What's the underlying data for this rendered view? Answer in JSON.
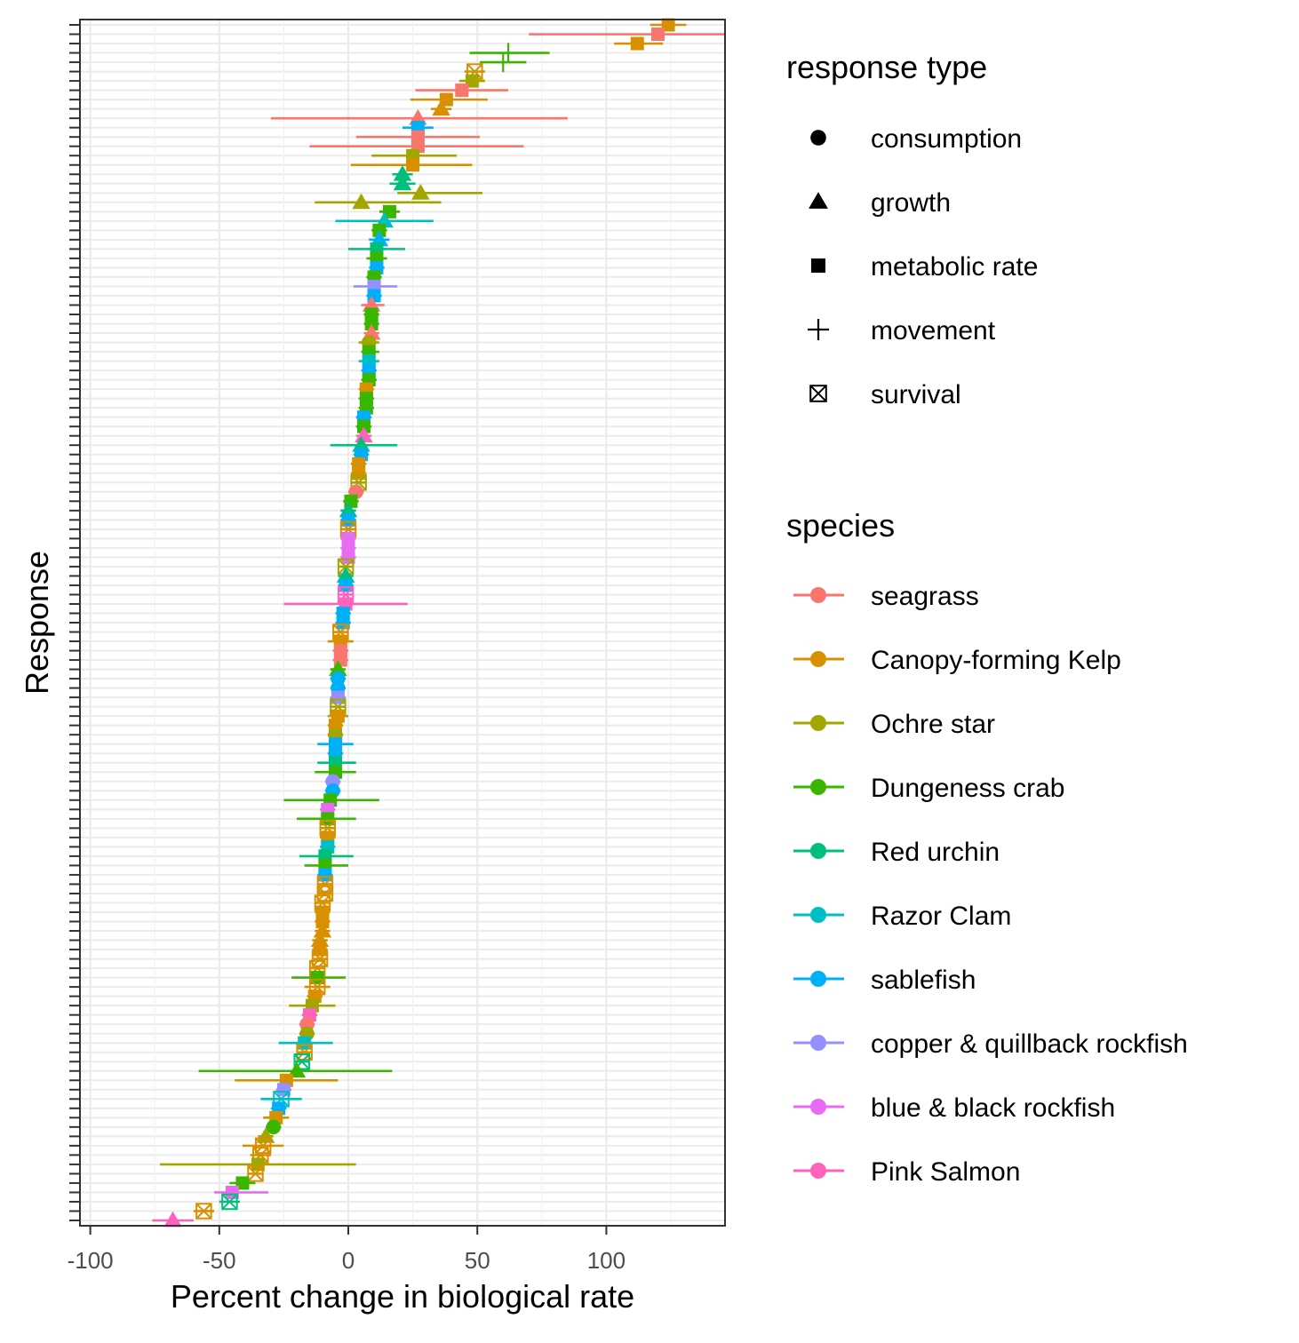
{
  "chart_data": {
    "type": "scatter",
    "xlabel": "Percent change in biological rate",
    "ylabel": "Response",
    "xlim": [
      -104,
      146
    ],
    "x_ticks": [
      -100,
      -50,
      0,
      50,
      100
    ],
    "grid": true,
    "legend_position": "right",
    "shape_legend": {
      "title": "response type",
      "entries": [
        {
          "label": "consumption",
          "shape": "circle"
        },
        {
          "label": "growth",
          "shape": "triangle"
        },
        {
          "label": "metabolic rate",
          "shape": "square"
        },
        {
          "label": "movement",
          "shape": "plus"
        },
        {
          "label": "survival",
          "shape": "boxcross"
        }
      ]
    },
    "color_legend": {
      "title": "species",
      "entries": [
        {
          "label": "seagrass",
          "color": "#F8766D"
        },
        {
          "label": "Canopy-forming Kelp",
          "color": "#D89000"
        },
        {
          "label": "Ochre star",
          "color": "#A3A500"
        },
        {
          "label": "Dungeness crab",
          "color": "#39B600"
        },
        {
          "label": "Red urchin",
          "color": "#00BF7D"
        },
        {
          "label": "Razor Clam",
          "color": "#00BFC4"
        },
        {
          "label": "sablefish",
          "color": "#00B0F6"
        },
        {
          "label": "copper & quillback rockfish",
          "color": "#9590FF"
        },
        {
          "label": "blue & black rockfish",
          "color": "#E76BF3"
        },
        {
          "label": "Pink Salmon",
          "color": "#FF62BC"
        }
      ]
    },
    "points": [
      {
        "x": 124,
        "lo": 117,
        "hi": 131,
        "sp": 1,
        "sh": "square"
      },
      {
        "x": 120,
        "lo": 70,
        "hi": 146,
        "sp": 0,
        "sh": "square"
      },
      {
        "x": 112,
        "lo": 103,
        "hi": 122,
        "sp": 1,
        "sh": "square"
      },
      {
        "x": 62,
        "lo": 47,
        "hi": 78,
        "sp": 3,
        "sh": "plus"
      },
      {
        "x": 60,
        "lo": 51,
        "hi": 69,
        "sp": 3,
        "sh": "plus"
      },
      {
        "x": 49,
        "lo": 45,
        "hi": 53,
        "sp": 1,
        "sh": "boxcross"
      },
      {
        "x": 48,
        "lo": 43,
        "hi": 53,
        "sp": 2,
        "sh": "square"
      },
      {
        "x": 44,
        "lo": 26,
        "hi": 62,
        "sp": 0,
        "sh": "square"
      },
      {
        "x": 38,
        "lo": 24,
        "hi": 54,
        "sp": 1,
        "sh": "square"
      },
      {
        "x": 36,
        "lo": 32,
        "hi": 40,
        "sp": 1,
        "sh": "triangle"
      },
      {
        "x": 27,
        "lo": -30,
        "hi": 85,
        "sp": 0,
        "sh": "triangle"
      },
      {
        "x": 27,
        "lo": 21,
        "hi": 33,
        "sp": 6,
        "sh": "square"
      },
      {
        "x": 27,
        "lo": 3,
        "hi": 51,
        "sp": 0,
        "sh": "square"
      },
      {
        "x": 27,
        "lo": -15,
        "hi": 68,
        "sp": 0,
        "sh": "square"
      },
      {
        "x": 25,
        "lo": 9,
        "hi": 42,
        "sp": 2,
        "sh": "square"
      },
      {
        "x": 25,
        "lo": 1,
        "hi": 48,
        "sp": 1,
        "sh": "square"
      },
      {
        "x": 21,
        "lo": 17,
        "hi": 25,
        "sp": 4,
        "sh": "triangle"
      },
      {
        "x": 21,
        "lo": 16,
        "hi": 26,
        "sp": 4,
        "sh": "triangle"
      },
      {
        "x": 28,
        "lo": 19,
        "hi": 52,
        "sp": 2,
        "sh": "triangle"
      },
      {
        "x": 5,
        "lo": -13,
        "hi": 36,
        "sp": 2,
        "sh": "triangle"
      },
      {
        "x": 16,
        "lo": 12,
        "hi": 20,
        "sp": 3,
        "sh": "square"
      },
      {
        "x": 14,
        "lo": -5,
        "hi": 33,
        "sp": 5,
        "sh": "triangle"
      },
      {
        "x": 12,
        "lo": 9,
        "hi": 15,
        "sp": 3,
        "sh": "square"
      },
      {
        "x": 12,
        "lo": 8,
        "hi": 16,
        "sp": 6,
        "sh": "triangle"
      },
      {
        "x": 11,
        "lo": 0,
        "hi": 22,
        "sp": 4,
        "sh": "square"
      },
      {
        "x": 11,
        "lo": 7,
        "hi": 15,
        "sp": 3,
        "sh": "square"
      },
      {
        "x": 11,
        "lo": 8,
        "hi": 14,
        "sp": 6,
        "sh": "square"
      },
      {
        "x": 10,
        "lo": 7,
        "hi": 13,
        "sp": 3,
        "sh": "square"
      },
      {
        "x": 10,
        "lo": 2,
        "hi": 19,
        "sp": 7,
        "sh": "square"
      },
      {
        "x": 10,
        "lo": 7,
        "hi": 13,
        "sp": 6,
        "sh": "square"
      },
      {
        "x": 9,
        "lo": 5,
        "hi": 14,
        "sp": 0,
        "sh": "triangle"
      },
      {
        "x": 9,
        "lo": 6,
        "hi": 12,
        "sp": 3,
        "sh": "square"
      },
      {
        "x": 9,
        "lo": 6,
        "hi": 12,
        "sp": 3,
        "sh": "square"
      },
      {
        "x": 9,
        "lo": 6,
        "hi": 12,
        "sp": 0,
        "sh": "triangle"
      },
      {
        "x": 8,
        "lo": 4,
        "hi": 12,
        "sp": 2,
        "sh": "circle"
      },
      {
        "x": 8,
        "lo": 5,
        "hi": 12,
        "sp": 3,
        "sh": "square"
      },
      {
        "x": 8,
        "lo": 4,
        "hi": 12,
        "sp": 5,
        "sh": "square"
      },
      {
        "x": 8,
        "lo": 5,
        "hi": 11,
        "sp": 6,
        "sh": "square"
      },
      {
        "x": 8,
        "lo": 5,
        "hi": 11,
        "sp": 3,
        "sh": "square"
      },
      {
        "x": 7,
        "lo": 4,
        "hi": 10,
        "sp": 1,
        "sh": "square"
      },
      {
        "x": 7,
        "lo": 4,
        "hi": 10,
        "sp": 3,
        "sh": "square"
      },
      {
        "x": 7,
        "lo": 4,
        "hi": 10,
        "sp": 3,
        "sh": "square"
      },
      {
        "x": 6,
        "lo": 3,
        "hi": 9,
        "sp": 6,
        "sh": "square"
      },
      {
        "x": 6,
        "lo": 3,
        "hi": 9,
        "sp": 3,
        "sh": "square"
      },
      {
        "x": 6,
        "lo": 3,
        "hi": 9,
        "sp": 9,
        "sh": "triangle"
      },
      {
        "x": 5,
        "lo": -7,
        "hi": 19,
        "sp": 4,
        "sh": "triangle"
      },
      {
        "x": 5,
        "lo": 2,
        "hi": 8,
        "sp": 6,
        "sh": "square"
      },
      {
        "x": 4,
        "lo": 1,
        "hi": 7,
        "sp": 1,
        "sh": "square"
      },
      {
        "x": 4,
        "lo": 1,
        "hi": 7,
        "sp": 1,
        "sh": "square"
      },
      {
        "x": 4,
        "lo": 1,
        "hi": 7,
        "sp": 2,
        "sh": "boxcross"
      },
      {
        "x": 3,
        "lo": 0,
        "hi": 6,
        "sp": 0,
        "sh": "circle"
      },
      {
        "x": 1,
        "lo": -2,
        "hi": 4,
        "sp": 3,
        "sh": "square"
      },
      {
        "x": 0,
        "lo": -3,
        "hi": 3,
        "sp": 4,
        "sh": "triangle"
      },
      {
        "x": 0,
        "lo": -3,
        "hi": 3,
        "sp": 6,
        "sh": "square"
      },
      {
        "x": 0,
        "lo": -3,
        "hi": 3,
        "sp": 1,
        "sh": "boxcross"
      },
      {
        "x": 0,
        "lo": -3,
        "hi": 3,
        "sp": 8,
        "sh": "square"
      },
      {
        "x": 0,
        "lo": -3,
        "hi": 3,
        "sp": 8,
        "sh": "square"
      },
      {
        "x": 0,
        "lo": -3,
        "hi": 3,
        "sp": 8,
        "sh": "square"
      },
      {
        "x": -1,
        "lo": -4,
        "hi": 2,
        "sp": 2,
        "sh": "boxcross"
      },
      {
        "x": -1,
        "lo": -4,
        "hi": 2,
        "sp": 4,
        "sh": "triangle"
      },
      {
        "x": -1,
        "lo": -4,
        "hi": 2,
        "sp": 6,
        "sh": "square"
      },
      {
        "x": -1,
        "lo": -4,
        "hi": 2,
        "sp": 9,
        "sh": "boxcross"
      },
      {
        "x": -1,
        "lo": -25,
        "hi": 23,
        "sp": 9,
        "sh": "square"
      },
      {
        "x": -2,
        "lo": -5,
        "hi": 1,
        "sp": 6,
        "sh": "square"
      },
      {
        "x": -2,
        "lo": -5,
        "hi": 1,
        "sp": 6,
        "sh": "square"
      },
      {
        "x": -3,
        "lo": -6,
        "hi": 0,
        "sp": 1,
        "sh": "boxcross"
      },
      {
        "x": -3,
        "lo": -8,
        "hi": 2,
        "sp": 1,
        "sh": "square"
      },
      {
        "x": -3,
        "lo": -6,
        "hi": 0,
        "sp": 0,
        "sh": "square"
      },
      {
        "x": -3,
        "lo": -6,
        "hi": 0,
        "sp": 0,
        "sh": "square"
      },
      {
        "x": -4,
        "lo": -7,
        "hi": -1,
        "sp": 3,
        "sh": "triangle"
      },
      {
        "x": -4,
        "lo": -7,
        "hi": -1,
        "sp": 6,
        "sh": "circle"
      },
      {
        "x": -4,
        "lo": -7,
        "hi": -1,
        "sp": 6,
        "sh": "circle"
      },
      {
        "x": -4,
        "lo": -7,
        "hi": -1,
        "sp": 7,
        "sh": "square"
      },
      {
        "x": -4,
        "lo": -7,
        "hi": -1,
        "sp": 2,
        "sh": "boxcross"
      },
      {
        "x": -4,
        "lo": -8,
        "hi": 0,
        "sp": 1,
        "sh": "square"
      },
      {
        "x": -5,
        "lo": -8,
        "hi": -2,
        "sp": 1,
        "sh": "square"
      },
      {
        "x": -5,
        "lo": -8,
        "hi": -2,
        "sp": 2,
        "sh": "circle"
      },
      {
        "x": -5,
        "lo": -12,
        "hi": 2,
        "sp": 6,
        "sh": "square"
      },
      {
        "x": -5,
        "lo": -8,
        "hi": -2,
        "sp": 6,
        "sh": "square"
      },
      {
        "x": -5,
        "lo": -12,
        "hi": 3,
        "sp": 4,
        "sh": "square"
      },
      {
        "x": -5,
        "lo": -13,
        "hi": 3,
        "sp": 3,
        "sh": "square"
      },
      {
        "x": -6,
        "lo": -9,
        "hi": -3,
        "sp": 7,
        "sh": "circle"
      },
      {
        "x": -6,
        "lo": -9,
        "hi": -3,
        "sp": 6,
        "sh": "circle"
      },
      {
        "x": -7,
        "lo": -25,
        "hi": 12,
        "sp": 3,
        "sh": "square"
      },
      {
        "x": -8,
        "lo": -11,
        "hi": -5,
        "sp": 8,
        "sh": "square"
      },
      {
        "x": -8,
        "lo": -20,
        "hi": 3,
        "sp": 3,
        "sh": "square"
      },
      {
        "x": -8,
        "lo": -11,
        "hi": -5,
        "sp": 1,
        "sh": "boxcross"
      },
      {
        "x": -8,
        "lo": -11,
        "hi": -5,
        "sp": 1,
        "sh": "square"
      },
      {
        "x": -8,
        "lo": -11,
        "hi": -5,
        "sp": 5,
        "sh": "square"
      },
      {
        "x": -9,
        "lo": -19,
        "hi": 2,
        "sp": 4,
        "sh": "square"
      },
      {
        "x": -9,
        "lo": -17,
        "hi": 0,
        "sp": 3,
        "sh": "square"
      },
      {
        "x": -9,
        "lo": -12,
        "hi": -6,
        "sp": 6,
        "sh": "square"
      },
      {
        "x": -9,
        "lo": -12,
        "hi": -6,
        "sp": 1,
        "sh": "boxcross"
      },
      {
        "x": -9,
        "lo": -12,
        "hi": -6,
        "sp": 1,
        "sh": "boxcross"
      },
      {
        "x": -10,
        "lo": -13,
        "hi": -7,
        "sp": 1,
        "sh": "boxcross"
      },
      {
        "x": -10,
        "lo": -13,
        "hi": -7,
        "sp": 1,
        "sh": "square"
      },
      {
        "x": -10,
        "lo": -13,
        "hi": -7,
        "sp": 1,
        "sh": "square"
      },
      {
        "x": -10,
        "lo": -13,
        "hi": -7,
        "sp": 1,
        "sh": "triangle"
      },
      {
        "x": -11,
        "lo": -14,
        "hi": -8,
        "sp": 1,
        "sh": "triangle"
      },
      {
        "x": -11,
        "lo": -14,
        "hi": -8,
        "sp": 1,
        "sh": "square"
      },
      {
        "x": -11,
        "lo": -14,
        "hi": -8,
        "sp": 1,
        "sh": "boxcross"
      },
      {
        "x": -12,
        "lo": -15,
        "hi": -9,
        "sp": 1,
        "sh": "boxcross"
      },
      {
        "x": -12,
        "lo": -22,
        "hi": -1,
        "sp": 3,
        "sh": "square"
      },
      {
        "x": -12,
        "lo": -17,
        "hi": -7,
        "sp": 1,
        "sh": "boxcross"
      },
      {
        "x": -13,
        "lo": -16,
        "hi": -10,
        "sp": 1,
        "sh": "square"
      },
      {
        "x": -14,
        "lo": -23,
        "hi": -5,
        "sp": 2,
        "sh": "square"
      },
      {
        "x": -15,
        "lo": -18,
        "hi": -12,
        "sp": 9,
        "sh": "square"
      },
      {
        "x": -16,
        "lo": -19,
        "hi": -13,
        "sp": 0,
        "sh": "circle"
      },
      {
        "x": -16,
        "lo": -19,
        "hi": -13,
        "sp": 2,
        "sh": "circle"
      },
      {
        "x": -17,
        "lo": -27,
        "hi": -6,
        "sp": 5,
        "sh": "square"
      },
      {
        "x": -17,
        "lo": -20,
        "hi": -14,
        "sp": 1,
        "sh": "boxcross"
      },
      {
        "x": -18,
        "lo": -21,
        "hi": -15,
        "sp": 4,
        "sh": "boxcross"
      },
      {
        "x": -20,
        "lo": -58,
        "hi": 17,
        "sp": 3,
        "sh": "triangle"
      },
      {
        "x": -24,
        "lo": -44,
        "hi": -4,
        "sp": 1,
        "sh": "square"
      },
      {
        "x": -25,
        "lo": -28,
        "hi": -22,
        "sp": 7,
        "sh": "square"
      },
      {
        "x": -26,
        "lo": -34,
        "hi": -18,
        "sp": 5,
        "sh": "boxcross"
      },
      {
        "x": -27,
        "lo": -30,
        "hi": -24,
        "sp": 6,
        "sh": "square"
      },
      {
        "x": -28,
        "lo": -33,
        "hi": -23,
        "sp": 1,
        "sh": "square"
      },
      {
        "x": -29,
        "lo": -32,
        "hi": -26,
        "sp": 3,
        "sh": "circle"
      },
      {
        "x": -32,
        "lo": -35,
        "hi": -29,
        "sp": 2,
        "sh": "triangle"
      },
      {
        "x": -33,
        "lo": -41,
        "hi": -25,
        "sp": 1,
        "sh": "boxcross"
      },
      {
        "x": -34,
        "lo": -38,
        "hi": -30,
        "sp": 1,
        "sh": "boxcross"
      },
      {
        "x": -35,
        "lo": -73,
        "hi": 3,
        "sp": 2,
        "sh": "square"
      },
      {
        "x": -36,
        "lo": -39,
        "hi": -33,
        "sp": 1,
        "sh": "boxcross"
      },
      {
        "x": -41,
        "lo": -46,
        "hi": -36,
        "sp": 3,
        "sh": "square"
      },
      {
        "x": -45,
        "lo": -52,
        "hi": -31,
        "sp": 8,
        "sh": "square"
      },
      {
        "x": -46,
        "lo": -50,
        "hi": -42,
        "sp": 4,
        "sh": "boxcross"
      },
      {
        "x": -56,
        "lo": -60,
        "hi": -52,
        "sp": 1,
        "sh": "boxcross"
      },
      {
        "x": -68,
        "lo": -76,
        "hi": -60,
        "sp": 9,
        "sh": "triangle"
      }
    ]
  }
}
